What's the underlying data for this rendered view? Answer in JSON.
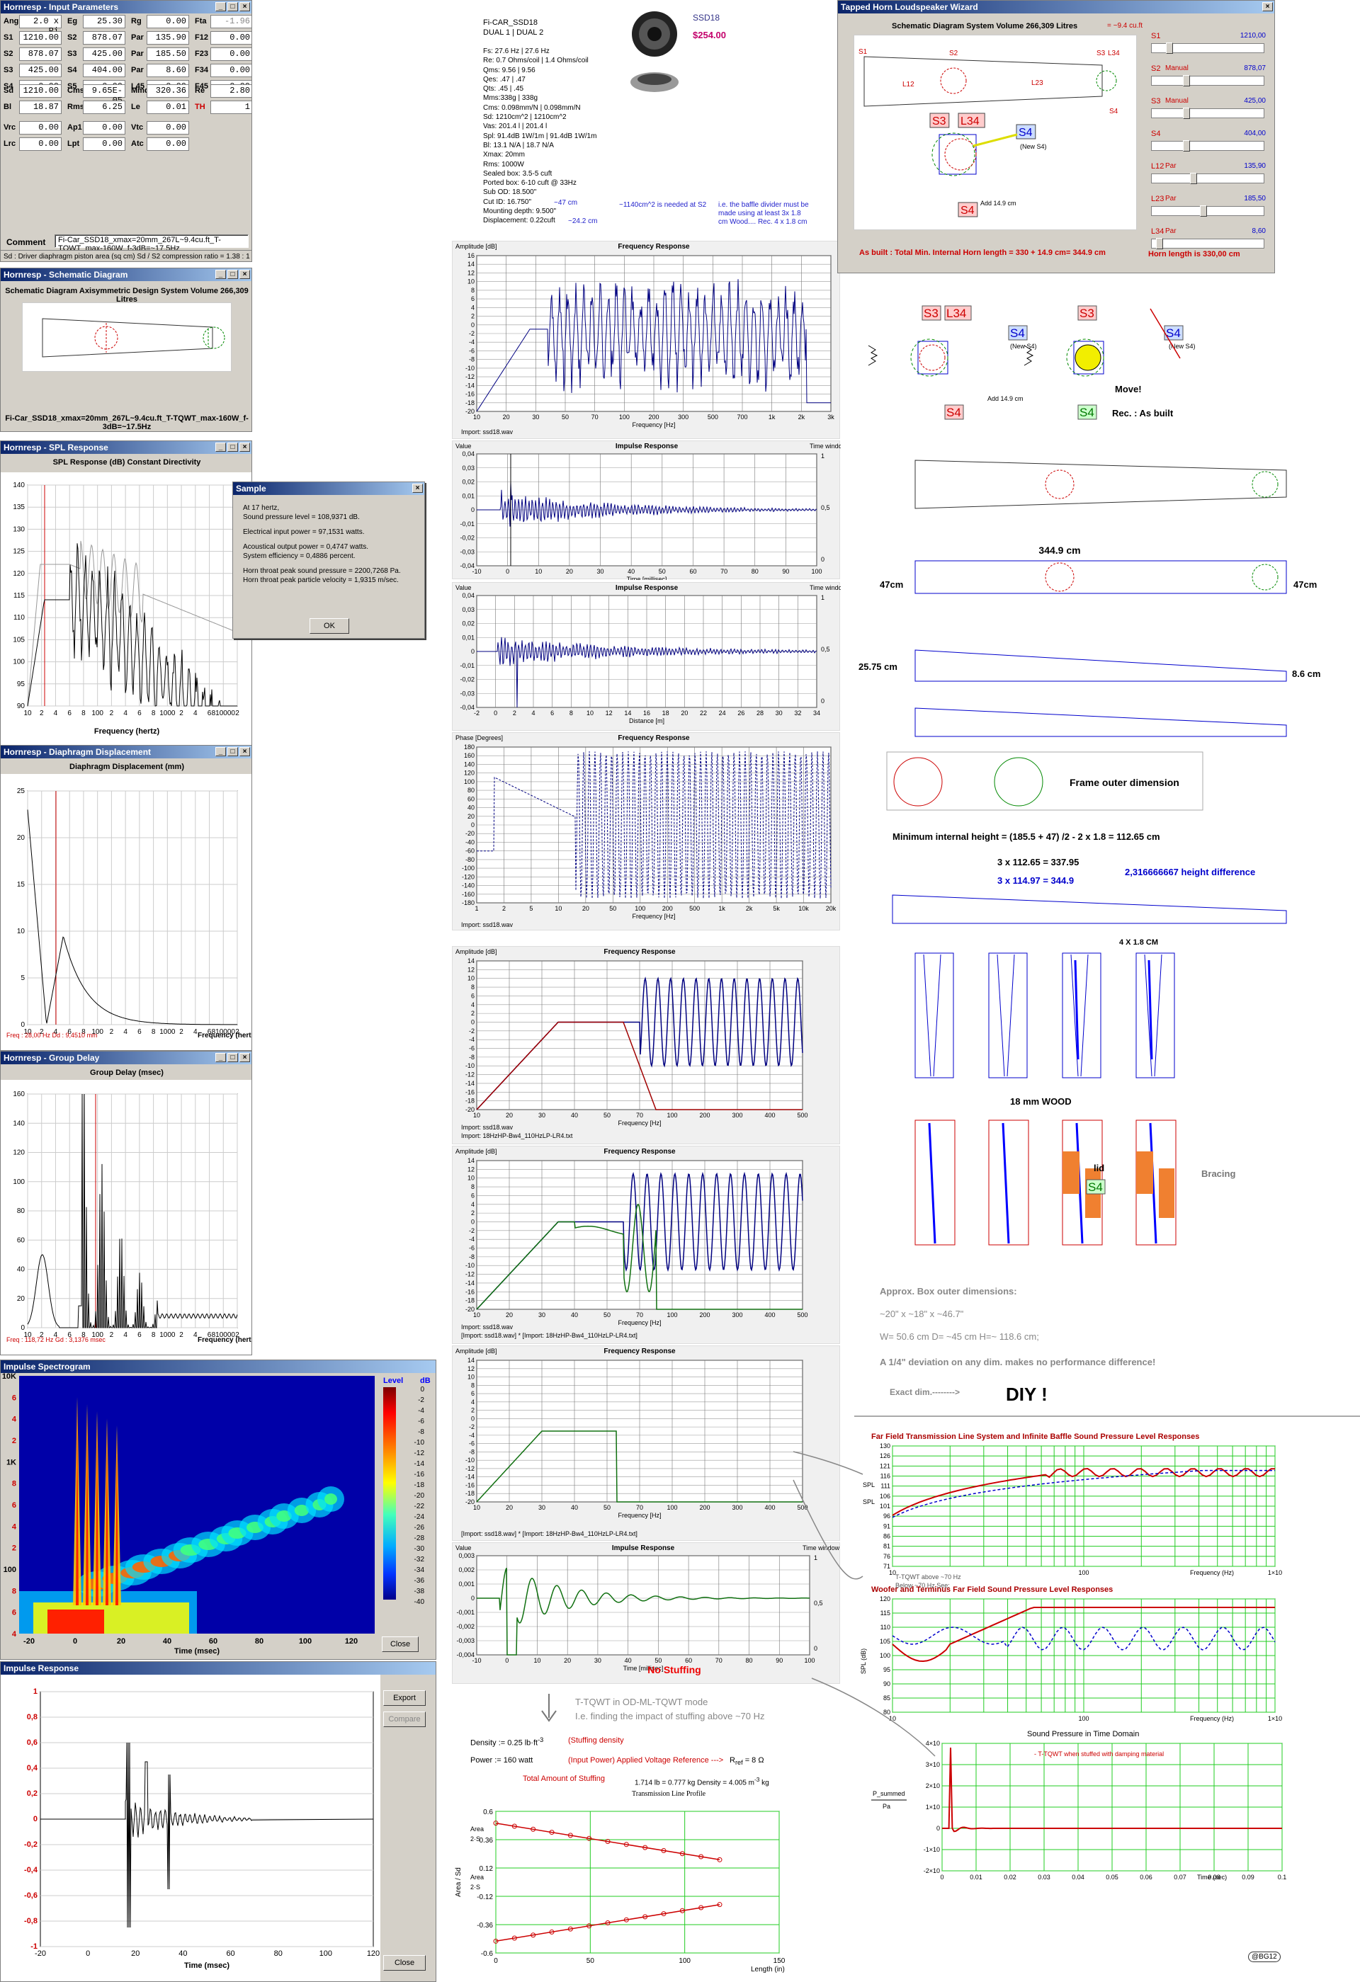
{
  "input_params": {
    "title": "Hornresp - Input Parameters",
    "rows1": [
      [
        "Ang",
        "2.0 x Pi",
        "Eg",
        "25.30",
        "Rg",
        "0.00",
        "Fta",
        "-1.96"
      ],
      [
        "S1",
        "1210.00",
        "S2",
        "878.07",
        "Par",
        "135.90",
        "F12",
        "0.00"
      ],
      [
        "S2",
        "878.07",
        "S3",
        "425.00",
        "Par",
        "185.50",
        "F23",
        "0.00"
      ],
      [
        "S3",
        "425.00",
        "S4",
        "404.00",
        "Par",
        "8.60",
        "F34",
        "0.00"
      ],
      [
        "S4",
        "0.00",
        "S5",
        "0.00",
        "L45",
        "0.00",
        "F45",
        "0.00"
      ]
    ],
    "rows2": [
      [
        "Sd",
        "1210.00",
        "Cms",
        "9.65E-05",
        "Mmd",
        "320.36",
        "Re",
        "2.80"
      ],
      [
        "Bl",
        "18.87",
        "Rms",
        "6.25",
        "Le",
        "0.01",
        "TH",
        "1"
      ]
    ],
    "rows3": [
      [
        "Vrc",
        "0.00",
        "Ap1",
        "0.00",
        "Vtc",
        "0.00"
      ],
      [
        "Lrc",
        "0.00",
        "Lpt",
        "0.00",
        "Atc",
        "0.00"
      ]
    ],
    "comment_label": "Comment",
    "comment": "Fi-Car_SSD18_xmax=20mm_267L~9.4cu.ft_T-TQWT_max-160W_f-3dB=~17.5Hz",
    "status": "Sd : Driver diaphragm piston area (sq cm)   Sd / S2 compression ratio = 1.38 : 1"
  },
  "schematic": {
    "title": "Hornresp - Schematic Diagram",
    "header": "Schematic Diagram    Axisymmetric Design    System Volume 266,309 Litres",
    "caption": "Fi-Car_SSD18_xmax=20mm_267L~9.4cu.ft_T-TQWT_max-160W_f-3dB=~17.5Hz"
  },
  "spl": {
    "title": "Hornresp - SPL Response",
    "header": "SPL Response (dB)   Constant Directivity",
    "xlabel": "Frequency (hertz)",
    "yticks": [
      "140",
      "135",
      "130",
      "125",
      "120",
      "115",
      "110",
      "105",
      "100",
      "95",
      "90"
    ],
    "xticks": [
      "10",
      "2",
      "4",
      "6",
      "8",
      "100",
      "2",
      "4",
      "6",
      "8",
      "1000",
      "2",
      "4",
      "6",
      "810000",
      "2"
    ]
  },
  "sample": {
    "title": "Sample",
    "lines": [
      "At 17 hertz,",
      "Sound pressure level = 108,9371 dB.",
      "Electrical input power = 97,1531 watts.",
      "Acoustical output power = 0,4747 watts.",
      "System efficiency = 0,4886 percent.",
      "Horn throat peak sound pressure = 2200,7268 Pa.",
      "Horn throat peak particle velocity = 1,9315 m/sec."
    ],
    "ok": "OK"
  },
  "disp": {
    "title": "Hornresp - Diaphragm Displacement",
    "header": "Diaphragm Displacement (mm)",
    "xlabel": "Frequency (hertz)",
    "yticks": [
      "25",
      "20",
      "15",
      "10",
      "5",
      "0"
    ],
    "readout": "Freq : 28,00 Hz     Dd : 9,4510 mm",
    "xticks": [
      "10",
      "2",
      "4",
      "6",
      "8",
      "100",
      "2",
      "4",
      "6",
      "8",
      "1000",
      "2",
      "4",
      "6",
      "810000",
      "2"
    ]
  },
  "gd": {
    "title": "Hornresp - Group Delay",
    "header": "Group Delay (msec)",
    "xlabel": "Frequency (hertz)",
    "yticks": [
      "160",
      "140",
      "120",
      "100",
      "80",
      "60",
      "40",
      "20",
      "0"
    ],
    "readout": "Freq : 118,72 Hz     Gd : 3,1376 msec",
    "xticks": [
      "10",
      "2",
      "4",
      "6",
      "8",
      "100",
      "2",
      "4",
      "6",
      "8",
      "1000",
      "2",
      "4",
      "6",
      "810000",
      "2"
    ]
  },
  "spectro": {
    "title": "Impulse Spectrogram",
    "level": "Level",
    "unit": "dB",
    "yticks": [
      "10K",
      "6",
      "4",
      "2",
      "1K",
      "8",
      "6",
      "4",
      "2",
      "100",
      "8",
      "6",
      "4"
    ],
    "xticks": [
      "-20",
      "0",
      "20",
      "40",
      "60",
      "80",
      "100",
      "120"
    ],
    "xlabel": "Time (msec)",
    "scale": [
      "0",
      "-2",
      "-4",
      "-6",
      "-8",
      "-10",
      "-12",
      "-14",
      "-16",
      "-18",
      "-20",
      "-22",
      "-24",
      "-26",
      "-28",
      "-30",
      "-32",
      "-34",
      "-36",
      "-38",
      "-40"
    ],
    "close": "Close"
  },
  "impulse": {
    "title": "Impulse Response",
    "yticks": [
      "1",
      "0,8",
      "0,6",
      "0,4",
      "0,2",
      "0",
      "-0,2",
      "-0,4",
      "-0,6",
      "-0,8",
      "-1"
    ],
    "xticks": [
      "-20",
      "0",
      "20",
      "40",
      "60",
      "80",
      "100",
      "120"
    ],
    "xlabel": "Time (msec)",
    "export": "Export",
    "compare": "Compare",
    "close": "Close"
  },
  "spec": {
    "model": "Fi-CAR_SSD18",
    "sub": "DUAL 1 | DUAL 2",
    "name": "SSD18",
    "price": "$254.00",
    "lines": [
      "Fs: 27.6 Hz | 27.6 Hz",
      "Re: 0.7 Ohms/coil | 1.4 Ohms/coil",
      "Qms: 9.56 | 9.56",
      "Qes: .47 | .47",
      "Qts: .45 | .45",
      "Mms:338g | 338g",
      "Cms: 0.098mm/N | 0.098mm/N",
      "Sd: 1210cm^2 | 1210cm^2",
      "Vas: 201.4 l | 201.4 l",
      "Spl: 91.4dB 1W/1m | 91.4dB 1W/1m",
      "Bl: 13.1 N/A | 18.7 N/A",
      "Xmax: 20mm",
      "Rms: 1000W",
      "Sealed box: 3.5-5 cuft",
      "Ported box: 6-10 cuft @ 33Hz",
      "Sub OD: 18.500\"",
      "Cut ID: 16.750\"",
      "Mounting depth: 9.500\"",
      "Displacement: 0.22cuft"
    ],
    "od_note": "~47 cm",
    "md_note": "~24.2 cm",
    "note1": "~1140cm^2 is needed at S2",
    "note2": "i.e. the baffle divider must be made using at least 3x 1.8 cm Wood.... Rec. 4 x 1.8 cm"
  },
  "fr1": {
    "ylabel": "Amplitude [dB]",
    "title": "Frequency Response",
    "xlabel": "Frequency [Hz]",
    "legend": "Import: ssd18.wav",
    "yticks": [
      "16",
      "14",
      "12",
      "10",
      "8",
      "6",
      "4",
      "2",
      "0",
      "-2",
      "-4",
      "-6",
      "-8",
      "-10",
      "-12",
      "-14",
      "-16",
      "-18",
      "-20"
    ],
    "xticks": [
      "10",
      "20",
      "30",
      "50",
      "70",
      "100",
      "200",
      "300",
      "500",
      "700",
      "1k",
      "2k",
      "3k"
    ]
  },
  "ir1": {
    "ylabel": "Value",
    "title": "Impulse Response",
    "tw": "Time window",
    "xlabel": "Time [millisec]",
    "legend": "Import: ssd18.wav",
    "yticks": [
      "0,04",
      "0,03",
      "0,02",
      "0,01",
      "0",
      "-0,01",
      "-0,02",
      "-0,03",
      "-0,04"
    ],
    "xticks": [
      "-10",
      "0",
      "10",
      "20",
      "30",
      "40",
      "50",
      "60",
      "70",
      "80",
      "90",
      "100"
    ],
    "rticks": [
      "1",
      "0,5",
      "0"
    ]
  },
  "ir2": {
    "ylabel": "Value",
    "title": "Impulse Response",
    "tw": "Time window",
    "xlabel": "Distance [m]",
    "legend": "Import: ssd18.wav",
    "yticks": [
      "0,04",
      "0,03",
      "0,02",
      "0,01",
      "0",
      "-0,01",
      "-0,02",
      "-0,03",
      "-0,04"
    ],
    "xticks": [
      "-2",
      "0",
      "2",
      "4",
      "6",
      "8",
      "10",
      "12",
      "14",
      "16",
      "18",
      "20",
      "22",
      "24",
      "26",
      "28",
      "30",
      "32",
      "34"
    ],
    "rticks": [
      "1",
      "0,5",
      "0"
    ]
  },
  "ph": {
    "ylabel": "Phase [Degrees]",
    "title": "Frequency Response",
    "xlabel": "Frequency [Hz]",
    "legend": "Import: ssd18.wav",
    "yticks": [
      "180",
      "160",
      "140",
      "120",
      "100",
      "80",
      "60",
      "40",
      "20",
      "0",
      "-20",
      "-40",
      "-60",
      "-80",
      "-100",
      "-120",
      "-140",
      "-160",
      "-180"
    ],
    "xticks": [
      "1",
      "2",
      "5",
      "10",
      "20",
      "50",
      "100",
      "200",
      "500",
      "1k",
      "2k",
      "5k",
      "10k",
      "20k"
    ]
  },
  "fr2": {
    "ylabel": "Amplitude [dB]",
    "title": "Frequency Response",
    "xlabel": "Frequency [Hz]",
    "legend1": "Import: ssd18.wav",
    "legend2": "Import: 18HzHP-Bw4_110HzLP-LR4.txt",
    "yticks": [
      "14",
      "12",
      "10",
      "8",
      "6",
      "4",
      "2",
      "0",
      "-2",
      "-4",
      "-6",
      "-8",
      "-10",
      "-12",
      "-14",
      "-16",
      "-18",
      "-20"
    ],
    "xticks": [
      "10",
      "20",
      "30",
      "40",
      "50",
      "70",
      "100",
      "200",
      "300",
      "400",
      "500"
    ]
  },
  "fr3": {
    "ylabel": "Amplitude [dB]",
    "title": "Frequency Response",
    "xlabel": "Frequency [Hz]",
    "legend1": "Import: ssd18.wav",
    "legend2": "[Import: ssd18.wav] * [Import: 18HzHP-Bw4_110HzLP-LR4.txt]",
    "yticks": [
      "14",
      "12",
      "10",
      "8",
      "6",
      "4",
      "2",
      "0",
      "-2",
      "-4",
      "-6",
      "-8",
      "-10",
      "-12",
      "-14",
      "-16",
      "-18",
      "-20"
    ],
    "xticks": [
      "10",
      "20",
      "30",
      "40",
      "50",
      "70",
      "100",
      "200",
      "300",
      "400",
      "500"
    ]
  },
  "fr4": {
    "ylabel": "Amplitude [dB]",
    "title": "Frequency Response",
    "xlabel": "Frequency [Hz]",
    "legend": "[Import: ssd18.wav] * [Import: 18HzHP-Bw4_110HzLP-LR4.txt]",
    "yticks": [
      "14",
      "12",
      "10",
      "8",
      "6",
      "4",
      "2",
      "0",
      "-2",
      "-4",
      "-6",
      "-8",
      "-10",
      "-12",
      "-14",
      "-16",
      "-18",
      "-20"
    ],
    "xticks": [
      "10",
      "20",
      "30",
      "40",
      "50",
      "70",
      "100",
      "200",
      "300",
      "400",
      "500"
    ]
  },
  "ir3": {
    "ylabel": "Value",
    "title": "Impulse Response",
    "tw": "Time window",
    "xlabel": "Time [millisec]",
    "yticks": [
      "0,003",
      "0,002",
      "0,001",
      "0",
      "-0,001",
      "-0,002",
      "-0,003",
      "-0,004"
    ],
    "xticks": [
      "-10",
      "0",
      "10",
      "20",
      "30",
      "40",
      "50",
      "60",
      "70",
      "80",
      "90",
      "100"
    ],
    "rticks": [
      "1",
      "0,5",
      "0"
    ],
    "nostuff": "No Stuffing"
  },
  "math": {
    "tqwt1": "T-TQWT in OD-ML-TQWT mode",
    "tqwt2": "I.e. finding the impact of stuffing above ~70 Hz",
    "density": "Density := 0.25 lb·ft",
    "density_exp": "-3",
    "density_note": "(Stuffing density",
    "power": "Power := 160 watt",
    "power_note": "(Input Power)   Applied Voltage Reference --->",
    "rref": "R",
    "rref_sub": "ref",
    "rref_val": " = 8 Ω",
    "total": "Total Amount of Stuffing",
    "total_val": "1.714 lb = 0.777 kg   Density = 4.005 m",
    "total_exp": "-3",
    "total_unit": " kg",
    "tlp": "Transmission Line Profile",
    "tl_y": "Area / Sd",
    "tl_x": "Length (in)",
    "tl_yticks": [
      "0.6",
      "0.36",
      "0.12",
      "-0.12",
      "-0.36",
      "-0.6"
    ],
    "tl_xticks": [
      "0",
      "50",
      "100",
      "150"
    ],
    "tl_a1": "Area",
    "tl_a2": "2·S",
    "tl_b1": "Area",
    "tl_b2": "2·S"
  },
  "wizard": {
    "title": "Tapped Horn Loudspeaker Wizard",
    "header": "Schematic Diagram    System Volume 266,309 Litres",
    "vol_note": "= ~9.4 cu.ft",
    "labels": [
      "S1",
      "S2",
      "S3",
      "L34",
      "L12",
      "L23",
      "S4"
    ],
    "new_s4": "(New S4)",
    "add": "Add 14.9 cm",
    "sliders": [
      [
        "S1",
        "",
        "1210,00"
      ],
      [
        "S2",
        "Manual",
        "878,07"
      ],
      [
        "S3",
        "Manual",
        "425,00"
      ],
      [
        "S4",
        "",
        "404,00"
      ],
      [
        "L12",
        "Par",
        "135,90"
      ],
      [
        "L23",
        "Par",
        "185,50"
      ],
      [
        "L34",
        "Par",
        "8,60"
      ]
    ],
    "footer1": "As built : Total Min. Internal Horn length = 330 + 14.9 cm= 344.9 cm",
    "footer2": "Horn length is 330,00 cm"
  },
  "build": {
    "s3": "S3",
    "l34": "L34",
    "s4": "S4",
    "new_s4": "(New S4)",
    "add": "Add 14.9 cm",
    "move": "Move!",
    "rec": "Rec. : As built",
    "len": "344.9 cm",
    "h47l": "47cm",
    "h47r": "47cm",
    "h25": "25.75 cm",
    "h86": "8.6 cm",
    "frame": "Frame outer dimension",
    "minh": "Minimum internal height = (185.5 + 47) /2 - 2 x 1.8  = 112.65 cm",
    "c1": "3 x 112.65 = 337.95",
    "c2": "3 x 114.97 =  344.9",
    "c3": "2,316666667 height difference",
    "pieces": "4 X 1.8 CM",
    "wood": "18 mm WOOD",
    "lid": "lid",
    "bracing": "Bracing",
    "approx": "Approx. Box outer dimensions:",
    "dims": "~20\"  x  ~18\"  x  ~46.7\"",
    "dims2": "W= 50.6 cm    D= ~45 cm    H=~ 118.6 cm;",
    "dev": "A 1/4\" deviation on any dim. makes no performance difference!",
    "exact": "Exact dim.-------->",
    "diy": "DIY !"
  },
  "ff": {
    "title": "Far Field Transmission Line System and Infinite Baffle Sound Pressure Level Responses",
    "yticks": [
      "130",
      "126",
      "121",
      "116",
      "111",
      "106",
      "101",
      "96",
      "91",
      "86",
      "81",
      "76",
      "71"
    ],
    "xticks": [
      "10",
      "100",
      "1×10"
    ],
    "xlabel": "Frequency (Hz)",
    "ylab1": "SPL",
    "ylab2": "SPL",
    "note1": "T-TQWT above ~70 Hz",
    "note2": "Below ~70 Hz See:"
  },
  "wt": {
    "title": "Woofer and Terminus Far Field Sound Pressure Level Responses",
    "yticks": [
      "120",
      "115",
      "110",
      "105",
      "100",
      "95",
      "90",
      "85",
      "80"
    ],
    "xticks": [
      "10",
      "100",
      "1×10"
    ],
    "xlabel": "Frequency (Hz)",
    "ylab": "SPL (dB)"
  },
  "td": {
    "title": "Sound Pressure in Time Domain",
    "yticks": [
      "4×10",
      "3×10",
      "2×10",
      "1×10",
      "0",
      "-1×10",
      "-2×10"
    ],
    "xticks": [
      "0",
      "0.01",
      "0.02",
      "0.03",
      "0.04",
      "0.05",
      "0.06",
      "0.07",
      "0.08",
      "0.09",
      "0.1"
    ],
    "xlabel": "Time (sec)",
    "legend": "- T-TQWT when stuffed with damping material",
    "pa": "P_summed",
    "pa2": "Pa"
  },
  "sig": "@BG12"
}
